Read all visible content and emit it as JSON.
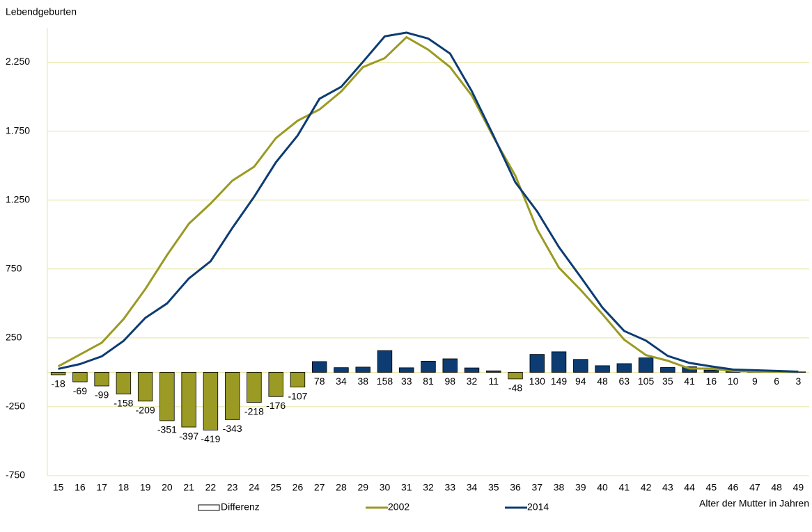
{
  "chart_data": {
    "type": "combo",
    "y_label": "Lebendgeburten",
    "x_label": "Alter der Mutter in Jahren",
    "categories": [
      "15",
      "16",
      "17",
      "18",
      "19",
      "20",
      "21",
      "22",
      "23",
      "24",
      "25",
      "26",
      "27",
      "28",
      "29",
      "30",
      "31",
      "32",
      "33",
      "34",
      "35",
      "36",
      "37",
      "38",
      "39",
      "40",
      "41",
      "42",
      "43",
      "44",
      "45",
      "46",
      "47",
      "48",
      "49"
    ],
    "series": [
      {
        "name": "Differenz",
        "type": "bar",
        "color": "#0d3c73",
        "negative_color": "#9a9a24",
        "values": [
          -18,
          -69,
          -99,
          -158,
          -209,
          -351,
          -397,
          -419,
          -343,
          -218,
          -176,
          -107,
          78,
          34,
          38,
          158,
          33,
          81,
          98,
          32,
          11,
          -48,
          130,
          149,
          94,
          48,
          63,
          105,
          35,
          41,
          16,
          10,
          9,
          6,
          3
        ]
      },
      {
        "name": "2002",
        "type": "line",
        "color": "#9a9a24",
        "values": [
          43,
          129,
          215,
          386,
          604,
          851,
          1078,
          1225,
          1391,
          1492,
          1700,
          1826,
          1907,
          2038,
          2215,
          2280,
          2432,
          2341,
          2215,
          2008,
          1705,
          1427,
          1038,
          760,
          598,
          422,
          237,
          125,
          84,
          27,
          27,
          10,
          6,
          4,
          2
        ]
      },
      {
        "name": "2014",
        "type": "line",
        "color": "#0d3c73",
        "values": [
          25,
          60,
          116,
          228,
          395,
          500,
          681,
          806,
          1048,
          1274,
          1524,
          1719,
          1985,
          2072,
          2253,
          2438,
          2465,
          2422,
          2313,
          2040,
          1716,
          1379,
          1168,
          909,
          692,
          470,
          300,
          230,
          119,
          68,
          43,
          20,
          15,
          10,
          5
        ]
      }
    ],
    "ylim": [
      -750,
      2500
    ],
    "yticks": [
      {
        "value": -750,
        "label": "-750"
      },
      {
        "value": -250,
        "label": "-250"
      },
      {
        "value": 250,
        "label": "250"
      },
      {
        "value": 750,
        "label": "750"
      },
      {
        "value": 1250,
        "label": "1.250"
      },
      {
        "value": 1750,
        "label": "1.750"
      },
      {
        "value": 2250,
        "label": "2.250"
      }
    ],
    "grid": true
  }
}
